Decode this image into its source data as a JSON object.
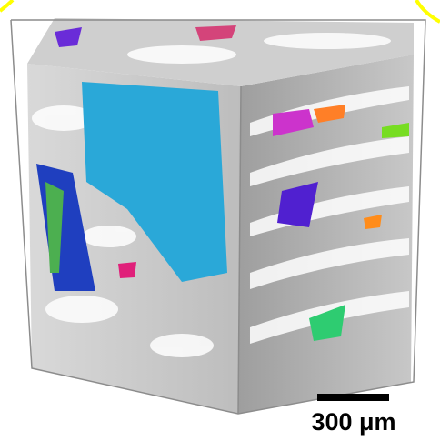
{
  "scale_bar": {
    "label": "300 μm"
  }
}
